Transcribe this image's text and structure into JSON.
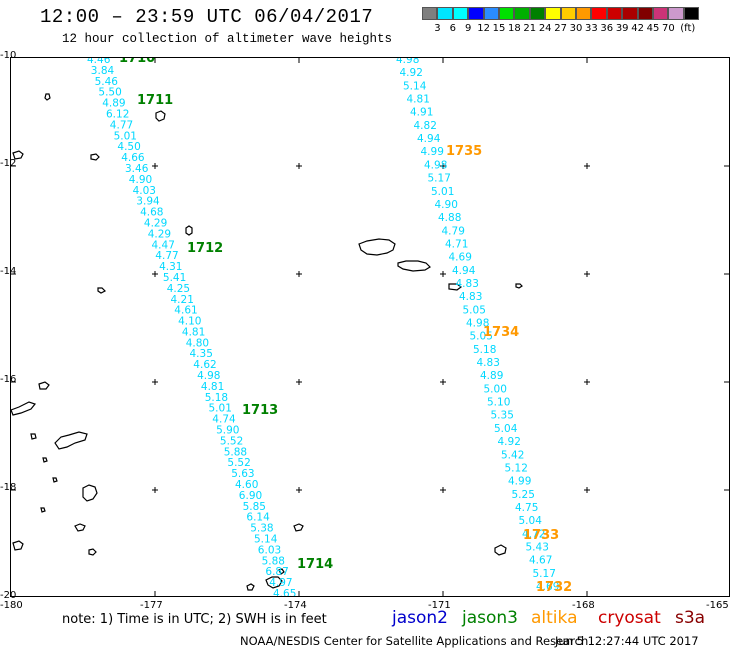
{
  "title": "12:00 – 23:59 UTC 06/04/2017",
  "subtitle": "12 hour collection of altimeter wave heights",
  "colorbar": {
    "colors": [
      "#7f7f7f",
      "#00e5ff",
      "#00ffff",
      "#0000ff",
      "#2a8cff",
      "#00e000",
      "#00b000",
      "#008000",
      "#ffff00",
      "#ffcc00",
      "#ff9900",
      "#ff0000",
      "#cc0000",
      "#aa0000",
      "#800000",
      "#cc3377",
      "#cc99cc",
      "#000000"
    ],
    "labels": [
      "3",
      "6",
      "9",
      "12",
      "15",
      "18",
      "21",
      "24",
      "27",
      "30",
      "33",
      "36",
      "39",
      "42",
      "45",
      "70",
      "(ft)"
    ]
  },
  "axes": {
    "lon_labels": [
      "-180",
      "-177",
      "-174",
      "-171",
      "-168",
      "-165"
    ],
    "lat_labels": [
      "-10",
      "-12",
      "-14",
      "-16",
      "-18",
      "-20"
    ]
  },
  "track_west": {
    "values": [
      "4.46",
      "3.84",
      "5.46",
      "5.50",
      "4.89",
      "6.12",
      "4.77",
      "5.01",
      "4.50",
      "4.66",
      "3.46",
      "4.90",
      "4.03",
      "3.94",
      "4.68",
      "4.29",
      "4.29",
      "4.47",
      "4.77",
      "4.31",
      "5.41",
      "4.25",
      "4.21",
      "4.61",
      "4.10",
      "4.81",
      "4.80",
      "4.35",
      "4.62",
      "4.98",
      "4.81",
      "5.18",
      "5.01",
      "4.74",
      "5.90",
      "5.52",
      "5.88",
      "5.52",
      "5.63",
      "4.60",
      "6.90",
      "5.85",
      "6.14",
      "5.38",
      "5.14",
      "6.03",
      "5.88",
      "6.87",
      "4.97",
      "4.65"
    ]
  },
  "track_east": {
    "values": [
      "4.98",
      "4.92",
      "5.14",
      "4.81",
      "4.91",
      "4.82",
      "4.94",
      "4.99",
      "4.98",
      "5.17",
      "5.01",
      "4.90",
      "4.88",
      "4.79",
      "4.71",
      "4.69",
      "4.94",
      "4.83",
      "4.83",
      "5.05",
      "4.98",
      "5.05",
      "5.18",
      "4.83",
      "4.89",
      "5.00",
      "5.10",
      "5.35",
      "5.04",
      "4.92",
      "5.42",
      "5.12",
      "4.99",
      "5.25",
      "4.75",
      "5.04",
      "4.72",
      "5.43",
      "4.67",
      "5.17",
      "4.69"
    ]
  },
  "time_labels_west": [
    "1710",
    "1711",
    "1712",
    "1713",
    "1714"
  ],
  "time_labels_east": [
    "1735",
    "1734",
    "1733",
    "1732"
  ],
  "colors": {
    "track": "#00d8ff",
    "jason3": "#008000",
    "altika": "#ff9900",
    "jason2": "#0000cc",
    "cryosat": "#cc0000",
    "s3a": "#880000"
  },
  "note": "note:  1) Time is in UTC;  2) SWH is in feet",
  "legend": {
    "jason2": "jason2",
    "jason3": "jason3",
    "altika": "altika",
    "cryosat": "cryosat",
    "s3a": "s3a"
  },
  "credit": "NOAA/NESDIS Center for Satellite Applications and Research",
  "timestamp": "Jun  5 12:27:44 UTC 2017"
}
